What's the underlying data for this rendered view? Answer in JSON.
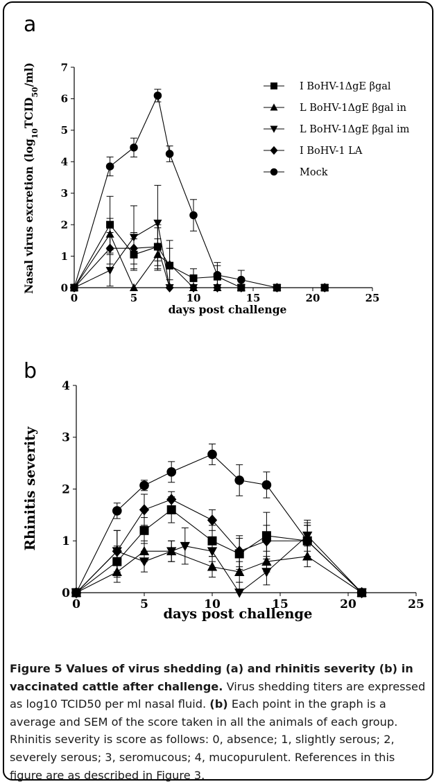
{
  "chart_data": [
    {
      "panel": "a",
      "type": "line",
      "xlabel": "days post challenge",
      "ylabel": "Nasal virus excretion (log10TCID50/ml)",
      "xlim": [
        0,
        25
      ],
      "ylim": [
        0,
        7
      ],
      "xticks": [
        "0",
        "5",
        "10",
        "15",
        "20",
        "25"
      ],
      "yticks": [
        "0",
        "1",
        "2",
        "3",
        "4",
        "5",
        "6",
        "7"
      ],
      "grid": false,
      "legend_position": "top-right",
      "series": [
        {
          "name": "I BoHV-1ΔgE βgal",
          "marker": "square",
          "x": [
            0,
            3,
            5,
            7,
            8,
            10,
            12,
            14,
            17,
            21
          ],
          "y": [
            0,
            2.0,
            1.05,
            1.3,
            0.7,
            0.3,
            0.35,
            0.0,
            0.0,
            0.0
          ],
          "err": [
            0,
            0.9,
            0.5,
            0.7,
            0.8,
            0.3,
            0.35,
            0.05,
            0,
            0
          ]
        },
        {
          "name": "L BoHV-1ΔgE βgal in",
          "marker": "triangle-up",
          "x": [
            0,
            3,
            5,
            7,
            8,
            10,
            12,
            14,
            17,
            21
          ],
          "y": [
            0,
            1.7,
            0.0,
            1.05,
            0.75,
            0.0,
            0.0,
            0.0,
            0.0,
            0.0
          ],
          "err": [
            0,
            0.5,
            0,
            0.5,
            0.5,
            0,
            0,
            0,
            0,
            0
          ]
        },
        {
          "name": "L BoHV-1ΔgE βgal im",
          "marker": "triangle-down",
          "x": [
            0,
            3,
            5,
            7,
            8,
            10,
            12,
            14,
            17,
            21
          ],
          "y": [
            0,
            0.55,
            1.6,
            2.05,
            0.0,
            0.0,
            0.0,
            0.0,
            0.0,
            0.0
          ],
          "err": [
            0,
            0.5,
            1.0,
            1.2,
            0,
            0,
            0,
            0,
            0,
            0
          ]
        },
        {
          "name": "I BoHV-1 LA",
          "marker": "diamond",
          "x": [
            0,
            3,
            5,
            7,
            8,
            10,
            12,
            14,
            17,
            21
          ],
          "y": [
            0,
            1.25,
            1.25,
            1.3,
            0.0,
            0.0,
            0.0,
            0.0,
            0.0,
            0.0
          ],
          "err": [
            0,
            0.5,
            0.5,
            0.6,
            0,
            0,
            0,
            0,
            0,
            0
          ]
        },
        {
          "name": "Mock",
          "marker": "circle",
          "x": [
            0,
            3,
            5,
            7,
            8,
            10,
            12,
            14,
            17,
            21
          ],
          "y": [
            0,
            3.85,
            4.45,
            6.1,
            4.25,
            2.3,
            0.4,
            0.25,
            0.0,
            0.0
          ],
          "err": [
            0,
            0.3,
            0.3,
            0.2,
            0.25,
            0.5,
            0.4,
            0.3,
            0,
            0
          ]
        }
      ]
    },
    {
      "panel": "b",
      "type": "line",
      "xlabel": "days post challenge",
      "ylabel": "Rhinitis severity",
      "xlim": [
        0,
        25
      ],
      "ylim": [
        0,
        4
      ],
      "xticks": [
        "0",
        "5",
        "10",
        "15",
        "20",
        "25"
      ],
      "yticks": [
        "0",
        "1",
        "2",
        "3",
        "4"
      ],
      "grid": false,
      "series": [
        {
          "name": "I BoHV-1ΔgE βgal",
          "marker": "square",
          "x": [
            0,
            3,
            5,
            7,
            10,
            12,
            14,
            17,
            21
          ],
          "y": [
            0,
            0.6,
            1.2,
            1.6,
            1.0,
            0.75,
            1.1,
            1.0,
            0.0
          ],
          "err": [
            0,
            0.3,
            0.25,
            0.25,
            0.3,
            0.3,
            0.45,
            0.3,
            0
          ]
        },
        {
          "name": "L BoHV-1ΔgE βgal in",
          "marker": "triangle-up",
          "x": [
            0,
            3,
            5,
            7,
            10,
            12,
            14,
            17,
            21
          ],
          "y": [
            0,
            0.4,
            0.8,
            0.8,
            0.5,
            0.4,
            0.6,
            0.7,
            0.0
          ],
          "err": [
            0,
            0.2,
            0.2,
            0.2,
            0.2,
            0.2,
            0.2,
            0.2,
            0
          ]
        },
        {
          "name": "L BoHV-1ΔgE βgal im",
          "marker": "triangle-down",
          "x": [
            0,
            3,
            5,
            7,
            8,
            10,
            12,
            14,
            17,
            21
          ],
          "y": [
            0,
            0.8,
            0.6,
            0.8,
            0.9,
            0.8,
            0.0,
            0.4,
            1.1,
            0.0
          ],
          "err": [
            0,
            0.4,
            0.2,
            0.2,
            0.35,
            0.2,
            0.2,
            0.25,
            0.3,
            0
          ]
        },
        {
          "name": "I BoHV-1 LA",
          "marker": "diamond",
          "x": [
            0,
            3,
            5,
            7,
            10,
            12,
            14,
            17,
            21
          ],
          "y": [
            0,
            0.8,
            1.6,
            1.8,
            1.4,
            0.8,
            1.0,
            1.0,
            0.0
          ],
          "err": [
            0,
            0.4,
            0.3,
            0.15,
            0.2,
            0.3,
            0.3,
            0.3,
            0
          ]
        },
        {
          "name": "Mock",
          "marker": "circle",
          "x": [
            0,
            3,
            5,
            7,
            10,
            12,
            14,
            17,
            21
          ],
          "y": [
            0,
            1.58,
            2.07,
            2.33,
            2.67,
            2.17,
            2.08,
            1.0,
            0.0
          ],
          "err": [
            0,
            0.15,
            0.1,
            0.2,
            0.2,
            0.3,
            0.25,
            0.35,
            0
          ]
        }
      ]
    }
  ],
  "caption": {
    "title": "Figure 5 Values of virus shedding (a) and rhinitis severity (b) in vaccinated cattle after challenge.",
    "text1": " Virus shedding titers are expressed as log10 TCID50 per ml nasal fluid. ",
    "b_label": "(b)",
    "text2": " Each point in the graph is a average and SEM of the score taken in all the animals of each group. Rhinitis severity is score as follows: 0, absence; 1, slightly serous; 2, severely serous; 3, seromucous; 4, mucopurulent. References in this figure are as described in Figure 3."
  }
}
